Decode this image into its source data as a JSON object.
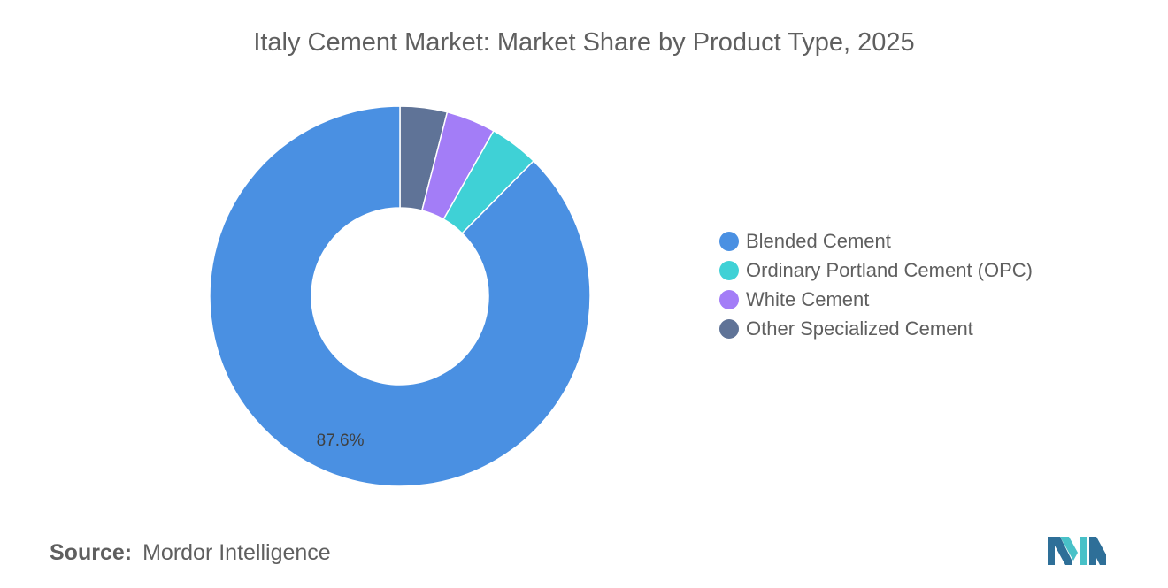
{
  "page": {
    "title": "Italy Cement Market: Market Share by Product Type, 2025",
    "source_label": "Source:",
    "source_value": "Mordor Intelligence",
    "logo": "mordor-intelligence-logo"
  },
  "chart_data": {
    "type": "pie",
    "title": "Italy Cement Market: Market Share by Product Type, 2025",
    "subtype": "donut",
    "unit": "%",
    "legend_position": "right",
    "series": [
      {
        "name": "Blended Cement",
        "value": 87.6,
        "color": "#4a90e2",
        "data_label": "87.6%"
      },
      {
        "name": "Ordinary Portland Cement (OPC)",
        "value": 4.2,
        "color": "#3fd1d6"
      },
      {
        "name": "White Cement",
        "value": 4.2,
        "color": "#a37df7"
      },
      {
        "name": "Other Specialized Cement",
        "value": 4.0,
        "color": "#5f7397"
      }
    ]
  }
}
